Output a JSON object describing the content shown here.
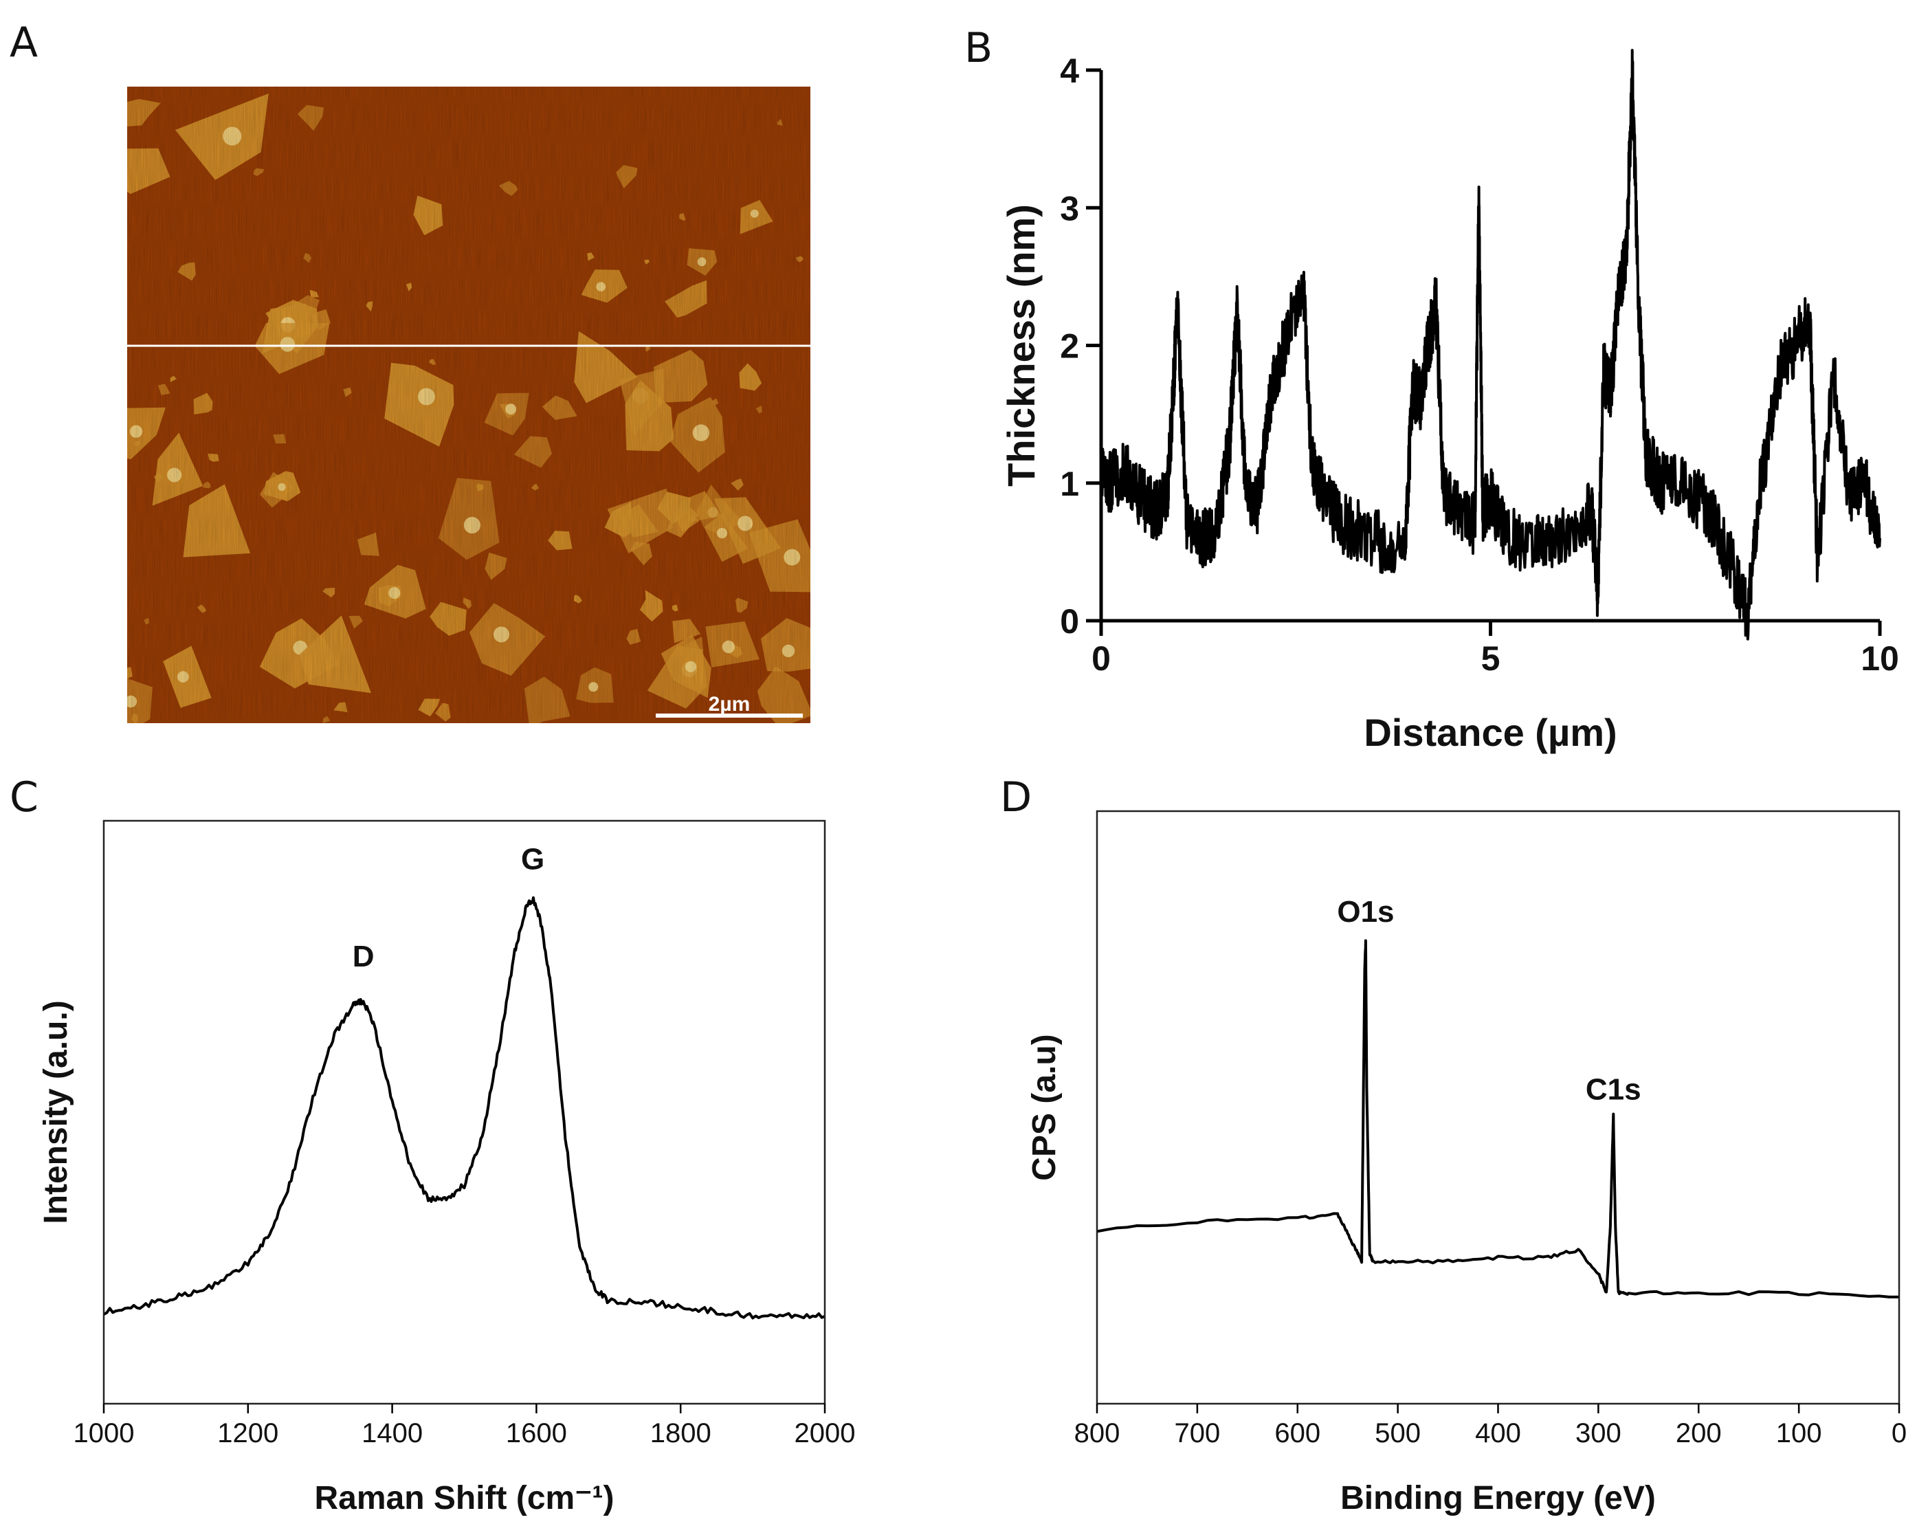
{
  "panels": {
    "A": {
      "label": "A",
      "scale_bar": "2µm",
      "colors": {
        "background": "#9a3d05",
        "flake": "#d9952b",
        "flake_bright": "#f6d98a",
        "line": "#ffffff"
      }
    },
    "B": {
      "label": "B"
    },
    "C": {
      "label": "C"
    },
    "D": {
      "label": "D"
    }
  },
  "chart_data": [
    {
      "id": "B",
      "type": "line",
      "xlabel": "Distance (µm)",
      "ylabel": "Thickness (nm)",
      "xlim": [
        0,
        10
      ],
      "ylim": [
        0,
        4
      ],
      "xticks": [
        "0",
        "5",
        "10"
      ],
      "yticks": [
        "0",
        "1",
        "2",
        "3",
        "4"
      ],
      "x": [
        0,
        0.1,
        0.3,
        0.5,
        0.7,
        0.85,
        0.92,
        0.98,
        1.1,
        1.3,
        1.5,
        1.65,
        1.75,
        1.85,
        2.0,
        2.2,
        2.4,
        2.6,
        2.7,
        2.85,
        3.1,
        3.5,
        3.9,
        4.0,
        4.1,
        4.2,
        4.3,
        4.4,
        4.6,
        4.8,
        4.85,
        4.9,
        5.0,
        5.2,
        5.6,
        6.0,
        6.3,
        6.38,
        6.45,
        6.55,
        6.65,
        6.75,
        6.82,
        6.9,
        7.0,
        7.2,
        7.5,
        7.8,
        8.1,
        8.3,
        8.45,
        8.7,
        8.9,
        9.1,
        9.2,
        9.4,
        9.6,
        9.8,
        10.0
      ],
      "values": [
        1.1,
        1.0,
        1.1,
        0.9,
        0.8,
        0.9,
        1.6,
        2.3,
        0.7,
        0.6,
        0.7,
        1.3,
        2.3,
        1.0,
        0.8,
        1.7,
        2.1,
        2.4,
        1.2,
        0.9,
        0.7,
        0.6,
        0.5,
        1.7,
        1.6,
        2.0,
        2.3,
        0.9,
        0.8,
        0.7,
        3.1,
        0.8,
        0.9,
        0.6,
        0.55,
        0.6,
        0.8,
        0.2,
        1.8,
        1.7,
        2.4,
        2.7,
        4.0,
        2.3,
        1.2,
        1.0,
        1.0,
        0.8,
        0.4,
        0.05,
        0.9,
        1.8,
        2.0,
        2.2,
        0.4,
        1.8,
        0.9,
        1.0,
        0.6
      ]
    },
    {
      "id": "C",
      "type": "line",
      "xlabel": "Raman Shift (cm⁻¹)",
      "ylabel": "Intensity (a.u.)",
      "xlim": [
        1000,
        2000
      ],
      "ylim": [
        0,
        1.2
      ],
      "xticks": [
        "1000",
        "1200",
        "1400",
        "1600",
        "1800",
        "2000"
      ],
      "annotations": [
        {
          "text": "D",
          "x": 1360,
          "y": 0.9
        },
        {
          "text": "G",
          "x": 1595,
          "y": 1.1
        }
      ],
      "x": [
        1000,
        1050,
        1100,
        1150,
        1200,
        1230,
        1260,
        1290,
        1320,
        1345,
        1360,
        1375,
        1400,
        1425,
        1450,
        1475,
        1500,
        1525,
        1550,
        1570,
        1585,
        1595,
        1605,
        1620,
        1640,
        1660,
        1680,
        1700,
        1750,
        1800,
        1850,
        1900,
        1950,
        2000
      ],
      "values": [
        0.19,
        0.2,
        0.22,
        0.24,
        0.29,
        0.35,
        0.46,
        0.63,
        0.76,
        0.82,
        0.83,
        0.78,
        0.62,
        0.49,
        0.42,
        0.42,
        0.45,
        0.55,
        0.75,
        0.93,
        1.02,
        1.04,
        1.0,
        0.86,
        0.55,
        0.32,
        0.24,
        0.21,
        0.21,
        0.2,
        0.19,
        0.18,
        0.18,
        0.18
      ]
    },
    {
      "id": "D",
      "type": "line",
      "xlabel": "Binding Energy (eV)",
      "ylabel": "CPS (a.u)",
      "xlim": [
        800,
        0
      ],
      "ylim": [
        0,
        1.5
      ],
      "xticks": [
        "800",
        "700",
        "600",
        "500",
        "400",
        "300",
        "200",
        "100",
        "0"
      ],
      "annotations": [
        {
          "text": "O1s",
          "x": 532,
          "y": 1.22
        },
        {
          "text": "C1s",
          "x": 285,
          "y": 0.77
        }
      ],
      "x": [
        800,
        700,
        600,
        560,
        550,
        540,
        536,
        533,
        532,
        531,
        528,
        525,
        500,
        450,
        400,
        350,
        320,
        300,
        292,
        288,
        285,
        283,
        280,
        270,
        200,
        100,
        0
      ],
      "values": [
        0.44,
        0.46,
        0.47,
        0.48,
        0.43,
        0.38,
        0.36,
        1.1,
        1.17,
        0.8,
        0.38,
        0.36,
        0.36,
        0.36,
        0.37,
        0.37,
        0.39,
        0.33,
        0.28,
        0.45,
        0.73,
        0.45,
        0.28,
        0.28,
        0.28,
        0.28,
        0.27
      ]
    }
  ]
}
